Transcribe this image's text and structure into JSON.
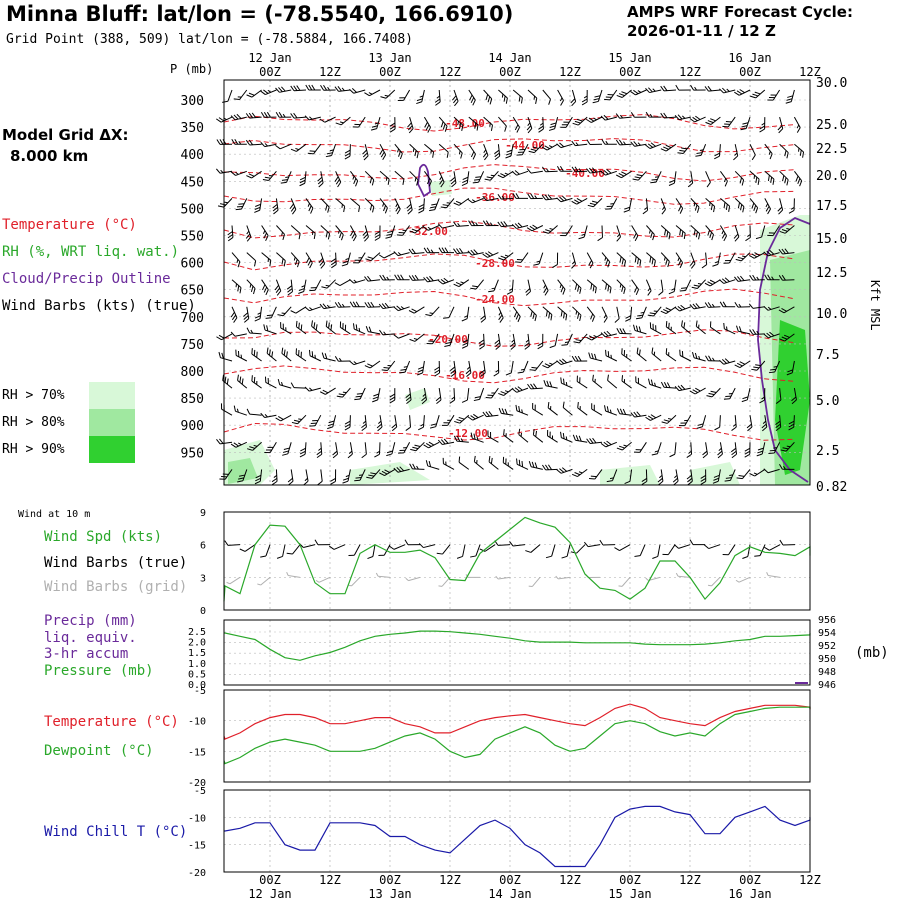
{
  "header": {
    "title": "Minna Bluff:  lat/lon = (-78.5540, 166.6910)",
    "subtitle": "Grid Point (388, 509) lat/lon = (-78.5884, 166.7408)",
    "cycle_label": "AMPS WRF Forecast Cycle:",
    "cycle_value": "2026-01-11 / 12  Z"
  },
  "sidebar": {
    "model_grid_label": "Model Grid ΔX:",
    "model_grid_value": "8.000 km",
    "legend": [
      {
        "label": "Temperature (°C)",
        "color": "#e0202a"
      },
      {
        "label": "RH (%, WRT liq. wat.)",
        "color": "#2aa82a"
      },
      {
        "label": "Cloud/Precip Outline",
        "color": "#6a2a9a"
      },
      {
        "label": "Wind Barbs (kts) (true)",
        "color": "#000000"
      }
    ],
    "rh_legend": [
      {
        "label": "RH > 70%",
        "color": "#d8f8d8"
      },
      {
        "label": "RH > 80%",
        "color": "#a0e8a0"
      },
      {
        "label": "RH > 90%",
        "color": "#30d030"
      }
    ]
  },
  "time_axis": {
    "hours": [
      0,
      12,
      24,
      36,
      48,
      60,
      72,
      84,
      96,
      108,
      120
    ],
    "top_hour_labels": [
      "00Z",
      "12Z",
      "00Z",
      "12Z",
      "00Z",
      "12Z",
      "00Z",
      "12Z",
      "00Z",
      "12Z"
    ],
    "bottom_hour_labels": [
      "00Z",
      "12Z",
      "00Z",
      "12Z",
      "00Z",
      "12Z",
      "00Z",
      "12Z",
      "00Z",
      "12Z"
    ],
    "date_labels": [
      "12 Jan",
      "13 Jan",
      "14 Jan",
      "15 Jan",
      "16 Jan"
    ]
  },
  "upper_panel": {
    "p_label": "P (mb)",
    "pressure_ticks": [
      "300",
      "350",
      "400",
      "450",
      "500",
      "550",
      "600",
      "650",
      "700",
      "750",
      "800",
      "850",
      "900",
      "950"
    ],
    "height_axis_label": "Kft MSL",
    "height_ticks": [
      "30.0",
      "25.0",
      "22.5",
      "20.0",
      "17.5",
      "15.0",
      "12.5",
      "10.0",
      "7.5",
      "5.0",
      "2.5",
      "0.82"
    ],
    "temp_labels": [
      "-48.00",
      "-44.00",
      "-40.00",
      "-36.00",
      "-32.00",
      "-28.00",
      "-24.00",
      "-20.00",
      "-16.00",
      "-12.00"
    ]
  },
  "wind_panel": {
    "title": "Wind at 10 m",
    "legend": [
      {
        "label": "Wind Spd (kts)",
        "color": "#2aa82a"
      },
      {
        "label": "Wind Barbs (true)",
        "color": "#000000"
      },
      {
        "label": "Wind Barbs (grid)",
        "color": "#b0b0b0"
      }
    ],
    "y_ticks": [
      "9",
      "6",
      "3",
      "0"
    ]
  },
  "precip_panel": {
    "legend": [
      {
        "label": "Precip (mm)",
        "color": "#6a2a9a"
      },
      {
        "label": "liq. equiv.",
        "color": "#6a2a9a"
      },
      {
        "label": "3-hr accum",
        "color": "#6a2a9a"
      },
      {
        "label": "Pressure (mb)",
        "color": "#2aa82a"
      }
    ],
    "left_ticks": [
      "2.5",
      "2.0",
      "1.5",
      "1.0",
      "0.5",
      "0.0"
    ],
    "right_ticks": [
      "956",
      "954",
      "952",
      "950",
      "948",
      "946"
    ],
    "right_unit": "(mb)"
  },
  "temp_panel": {
    "legend": [
      {
        "label": "Temperature (°C)",
        "color": "#e0202a"
      },
      {
        "label": "Dewpoint (°C)",
        "color": "#2aa82a"
      }
    ],
    "y_ticks": [
      "-5",
      "-10",
      "-15",
      "-20"
    ]
  },
  "windchill_panel": {
    "legend": [
      {
        "label": "Wind Chill T (°C)",
        "color": "#1a1aa8"
      }
    ],
    "y_ticks": [
      "-5",
      "-10",
      "-15",
      "-20"
    ]
  },
  "chart_data": [
    {
      "type": "line",
      "panel": "wind-speed-10m",
      "x_hours": [
        -12,
        -9,
        -6,
        -3,
        0,
        3,
        6,
        9,
        12,
        15,
        18,
        21,
        24,
        27,
        30,
        33,
        36,
        39,
        42,
        45,
        48,
        51,
        54,
        57,
        60,
        63,
        66,
        69,
        72,
        75,
        78,
        81,
        84,
        87,
        90,
        93,
        96,
        99,
        102,
        105,
        108,
        111,
        114
      ],
      "series": [
        {
          "name": "Wind Spd (kts)",
          "color": "#2aa82a",
          "values": [
            0.8,
            2.2,
            1.5,
            6.0,
            7.8,
            7.7,
            6.0,
            2.5,
            1.5,
            1.5,
            5.2,
            6.0,
            5.3,
            5.3,
            5.5,
            4.8,
            2.8,
            2.7,
            5.2,
            6.3,
            7.4,
            8.5,
            8.0,
            7.6,
            6.2,
            3.3,
            2.0,
            1.8,
            1.0,
            2.0,
            4.5,
            4.5,
            3.0,
            1.0,
            2.5,
            5.0,
            5.8,
            5.3,
            5.2,
            5.0,
            5.8,
            5.2,
            5.0
          ]
        }
      ],
      "ylim": [
        0,
        9
      ]
    },
    {
      "type": "line",
      "panel": "pressure",
      "x_hours": [
        -12,
        -9,
        -6,
        -3,
        0,
        3,
        6,
        9,
        12,
        15,
        18,
        21,
        24,
        27,
        30,
        33,
        36,
        39,
        42,
        45,
        48,
        51,
        54,
        57,
        60,
        63,
        66,
        69,
        72,
        75,
        78,
        81,
        84,
        87,
        90,
        93,
        96,
        99,
        102,
        105,
        108,
        111,
        114
      ],
      "series": [
        {
          "name": "Pressure (mb)",
          "color": "#2aa82a",
          "values": [
            954.0,
            954.0,
            953.5,
            953.0,
            951.5,
            950.2,
            949.8,
            950.5,
            951.0,
            951.8,
            952.8,
            953.5,
            953.8,
            954.0,
            954.3,
            954.3,
            954.2,
            954.0,
            953.8,
            953.5,
            953.2,
            952.8,
            952.6,
            952.6,
            952.6,
            952.5,
            952.5,
            952.5,
            952.5,
            952.3,
            952.2,
            952.2,
            952.2,
            952.3,
            952.5,
            952.8,
            953.0,
            953.5,
            953.5,
            953.6,
            953.7,
            953.8,
            954.0
          ]
        }
      ],
      "ylim": [
        946,
        956
      ]
    },
    {
      "type": "line",
      "panel": "temperature-dewpoint",
      "x_hours": [
        -12,
        -9,
        -6,
        -3,
        0,
        3,
        6,
        9,
        12,
        15,
        18,
        21,
        24,
        27,
        30,
        33,
        36,
        39,
        42,
        45,
        48,
        51,
        54,
        57,
        60,
        63,
        66,
        69,
        72,
        75,
        78,
        81,
        84,
        87,
        90,
        93,
        96,
        99,
        102,
        105,
        108,
        111,
        114
      ],
      "series": [
        {
          "name": "Temperature (°C)",
          "color": "#e0202a",
          "values": [
            -12.5,
            -13.0,
            -12.0,
            -10.5,
            -9.5,
            -9.0,
            -9.0,
            -9.5,
            -10.5,
            -10.5,
            -10.0,
            -9.5,
            -9.5,
            -10.5,
            -11.0,
            -12.0,
            -12.0,
            -11.0,
            -10.0,
            -9.5,
            -9.2,
            -9.0,
            -9.5,
            -10.0,
            -10.5,
            -10.8,
            -9.5,
            -8.0,
            -7.3,
            -8.0,
            -9.5,
            -10.0,
            -10.5,
            -10.8,
            -9.5,
            -8.5,
            -8.0,
            -7.5,
            -7.5,
            -7.5,
            -7.8,
            -8.0,
            -8.2
          ]
        },
        {
          "name": "Dewpoint (°C)",
          "color": "#2aa82a",
          "values": [
            -16.5,
            -17.0,
            -16.0,
            -14.5,
            -13.5,
            -13.0,
            -13.5,
            -14.0,
            -15.0,
            -15.0,
            -15.0,
            -14.5,
            -13.5,
            -12.5,
            -12.0,
            -13.0,
            -15.0,
            -16.0,
            -15.5,
            -13.0,
            -12.0,
            -11.0,
            -12.0,
            -14.0,
            -15.0,
            -14.5,
            -12.5,
            -10.5,
            -10.0,
            -10.5,
            -11.8,
            -12.5,
            -12.0,
            -12.5,
            -10.5,
            -9.0,
            -8.5,
            -8.0,
            -7.8,
            -7.8,
            -7.8,
            -7.9,
            -8.1
          ]
        }
      ],
      "ylim": [
        -20,
        -5
      ]
    },
    {
      "type": "line",
      "panel": "wind-chill",
      "x_hours": [
        -12,
        -9,
        -6,
        -3,
        0,
        3,
        6,
        9,
        12,
        15,
        18,
        21,
        24,
        27,
        30,
        33,
        36,
        39,
        42,
        45,
        48,
        51,
        54,
        57,
        60,
        63,
        66,
        69,
        72,
        75,
        78,
        81,
        84,
        87,
        90,
        93,
        96,
        99,
        102,
        105,
        108,
        111,
        114
      ],
      "series": [
        {
          "name": "Wind Chill T (°C)",
          "color": "#1a1aa8",
          "values": [
            -12.5,
            -12.5,
            -12.0,
            -11.0,
            -11.0,
            -15.0,
            -16.0,
            -16.0,
            -11.0,
            -11.0,
            -11.0,
            -11.5,
            -13.5,
            -13.5,
            -15.0,
            -16.0,
            -16.5,
            -14.0,
            -11.5,
            -10.5,
            -12.0,
            -15.0,
            -16.5,
            -19.0,
            -19.0,
            -19.0,
            -15.0,
            -10.0,
            -8.5,
            -8.0,
            -8.0,
            -9.0,
            -9.5,
            -13.0,
            -13.0,
            -10.0,
            -9.0,
            -8.0,
            -10.5,
            -11.5,
            -10.5,
            -10.0,
            -10.0
          ]
        }
      ],
      "ylim": [
        -20,
        -5
      ]
    }
  ]
}
